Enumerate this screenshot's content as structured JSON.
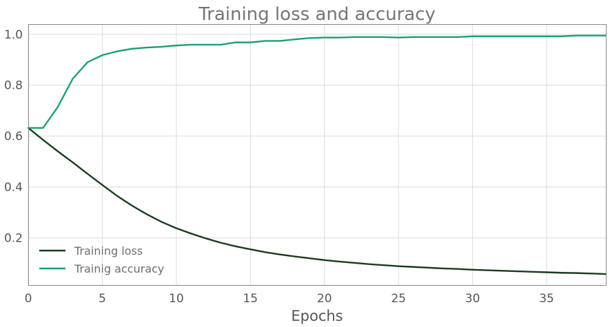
{
  "chart_data": {
    "type": "line",
    "title": "Training loss and accuracy",
    "xlabel": "Epochs",
    "ylabel": "",
    "xlim": [
      0,
      39
    ],
    "ylim": [
      0.015,
      1.04
    ],
    "xticks": [
      0,
      5,
      10,
      15,
      20,
      25,
      30,
      35
    ],
    "yticks": [
      0.2,
      0.4,
      0.6,
      0.8,
      1.0
    ],
    "grid": true,
    "legend_position": "bottom-left",
    "x": [
      0,
      1,
      2,
      3,
      4,
      5,
      6,
      7,
      8,
      9,
      10,
      11,
      12,
      13,
      14,
      15,
      16,
      17,
      18,
      19,
      20,
      21,
      22,
      23,
      24,
      25,
      26,
      27,
      28,
      29,
      30,
      31,
      32,
      33,
      34,
      35,
      36,
      37,
      38,
      39
    ],
    "series": [
      {
        "name": "Training loss",
        "color": "#1b3a1f",
        "values": [
          0.632,
          0.585,
          0.54,
          0.497,
          0.452,
          0.408,
          0.365,
          0.327,
          0.293,
          0.263,
          0.238,
          0.217,
          0.198,
          0.181,
          0.167,
          0.155,
          0.144,
          0.135,
          0.127,
          0.12,
          0.113,
          0.107,
          0.102,
          0.097,
          0.093,
          0.089,
          0.086,
          0.083,
          0.08,
          0.078,
          0.075,
          0.073,
          0.071,
          0.069,
          0.067,
          0.065,
          0.063,
          0.062,
          0.06,
          0.058
        ]
      },
      {
        "name": "Trainig accuracy",
        "color": "#1f9e72",
        "values": [
          0.632,
          0.632,
          0.715,
          0.825,
          0.89,
          0.918,
          0.933,
          0.943,
          0.948,
          0.951,
          0.956,
          0.959,
          0.959,
          0.959,
          0.968,
          0.968,
          0.974,
          0.974,
          0.98,
          0.985,
          0.987,
          0.987,
          0.989,
          0.989,
          0.989,
          0.987,
          0.989,
          0.989,
          0.989,
          0.989,
          0.992,
          0.992,
          0.992,
          0.992,
          0.992,
          0.992,
          0.992,
          0.995,
          0.995,
          0.995
        ]
      }
    ]
  }
}
